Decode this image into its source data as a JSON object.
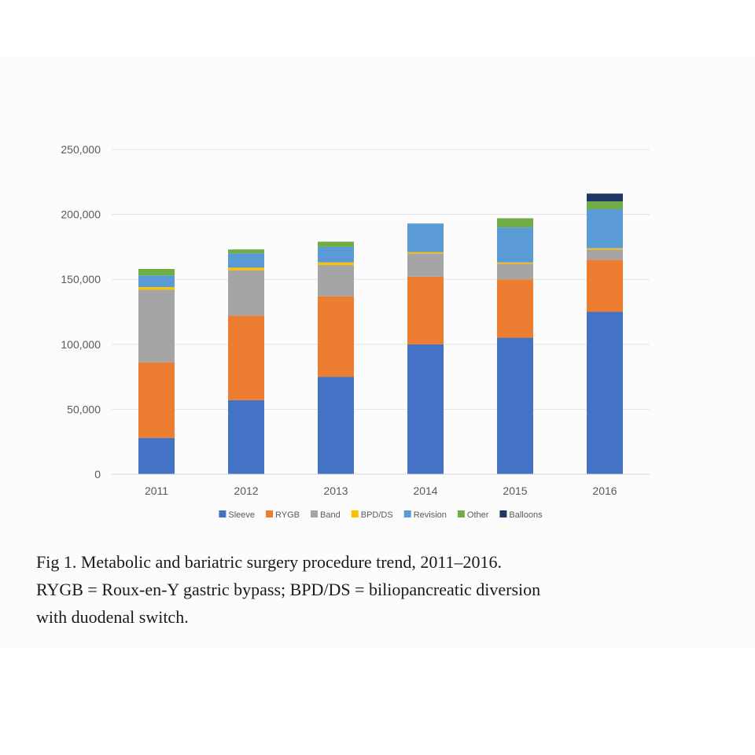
{
  "chart_data": {
    "type": "bar",
    "stacked": true,
    "categories": [
      "2011",
      "2012",
      "2013",
      "2014",
      "2015",
      "2016"
    ],
    "series": [
      {
        "name": "Sleeve",
        "color": "#4472c4",
        "values": [
          28000,
          57000,
          75000,
          100000,
          105000,
          125000
        ]
      },
      {
        "name": "RYGB",
        "color": "#ed7d31",
        "values": [
          58000,
          65000,
          62000,
          52000,
          45000,
          40000
        ]
      },
      {
        "name": "Band",
        "color": "#a5a5a5",
        "values": [
          56000,
          35000,
          24000,
          18000,
          12000,
          8000
        ]
      },
      {
        "name": "BPD/DS",
        "color": "#ffc000",
        "values": [
          2000,
          2000,
          2000,
          1000,
          1000,
          1000
        ]
      },
      {
        "name": "Revision",
        "color": "#5b9bd5",
        "values": [
          9000,
          11000,
          12000,
          22000,
          27000,
          30000
        ]
      },
      {
        "name": "Other",
        "color": "#70ad47",
        "values": [
          5000,
          3000,
          4000,
          0,
          7000,
          6000
        ]
      },
      {
        "name": "Balloons",
        "color": "#1f3864",
        "values": [
          0,
          0,
          0,
          0,
          0,
          6000
        ]
      }
    ],
    "y_ticks": [
      "0",
      "50,000",
      "100,000",
      "150,000",
      "200,000",
      "250,000"
    ],
    "ylim": [
      0,
      250000
    ],
    "grid": true,
    "legend": "bottom"
  },
  "caption": {
    "lines": [
      "Fig 1. Metabolic and bariatric surgery procedure trend, 2011–2016.",
      "RYGB = Roux-en-Y gastric bypass; BPD/DS = biliopancreatic diversion",
      "with duodenal switch."
    ]
  }
}
